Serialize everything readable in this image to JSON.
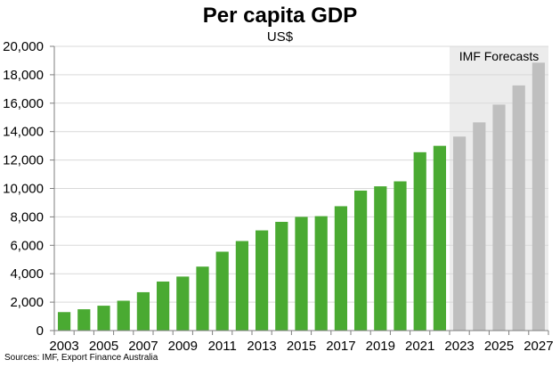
{
  "chart_data": {
    "type": "bar",
    "title": "Per capita GDP",
    "subtitle": "US$",
    "source": "Sources: IMF, Export Finance Australia",
    "annotation": "IMF Forecasts",
    "categories": [
      "2003",
      "2004",
      "2005",
      "2006",
      "2007",
      "2008",
      "2009",
      "2010",
      "2011",
      "2012",
      "2013",
      "2014",
      "2015",
      "2016",
      "2017",
      "2018",
      "2019",
      "2020",
      "2021",
      "2022",
      "2023",
      "2024",
      "2025",
      "2026",
      "2027"
    ],
    "x_tick_labels": [
      "2003",
      "2005",
      "2007",
      "2009",
      "2011",
      "2013",
      "2015",
      "2017",
      "2019",
      "2021",
      "2023",
      "2025",
      "2027"
    ],
    "series": [
      {
        "values": [
          1300,
          1500,
          1750,
          2100,
          2700,
          3450,
          3800,
          4500,
          5550,
          6300,
          7050,
          7650,
          8000,
          8050,
          8750,
          9850,
          10150,
          10500,
          12550,
          13000,
          13650,
          14650,
          15900,
          17250,
          18850
        ]
      }
    ],
    "forecast_start": "2023",
    "ylim": [
      0,
      20000
    ],
    "yticks": [
      "0",
      "2,000",
      "4,000",
      "6,000",
      "8,000",
      "10,000",
      "12,000",
      "14,000",
      "16,000",
      "18,000",
      "20,000"
    ],
    "colors": {
      "actual": "#4aaa32",
      "forecast": "#bfbfbf",
      "forecast_band": "#ececec",
      "gridline": "#d9d9d9",
      "axis": "#7f7f7f"
    },
    "grid": true,
    "legend": "none"
  }
}
